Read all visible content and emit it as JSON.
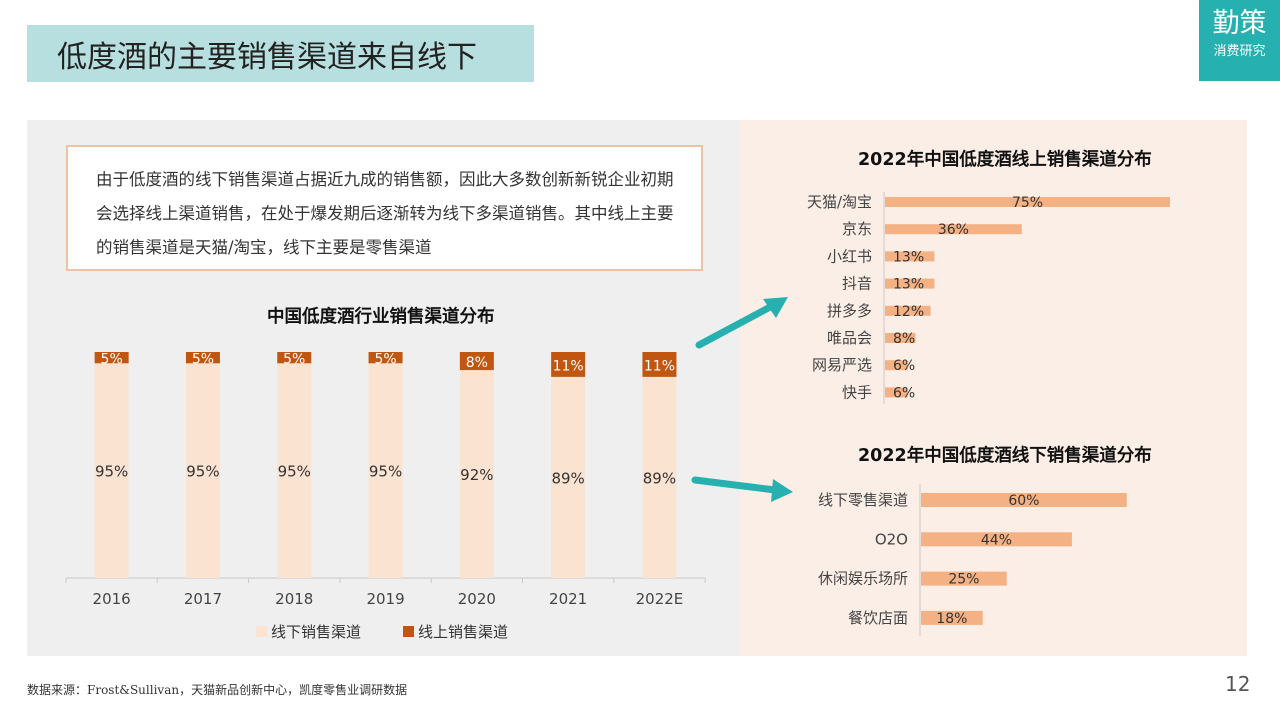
{
  "page": {
    "title": "低度酒的主要销售渠道来自线下",
    "brand_name": "勤策",
    "brand_sub": "消费研究",
    "description": "由于低度酒的线下销售渠道占据近九成的销售额，因此大多数创新新锐企业初期会选择线上渠道销售，在处于爆发期后逐渐转为线下多渠道销售。其中线上主要的销售渠道是天猫/淘宝，线下主要是零售渠道",
    "source": "数据来源：Frost&Sullivan，天猫新品创新中心，凯度零售业调研数据",
    "page_number": "12"
  },
  "colors": {
    "offline_bar": "#fbe3d2",
    "online_bar": "#c0560f",
    "hbar": "#f4b183",
    "accent": "#27b0b0",
    "title_bg": "#b8dfdf"
  },
  "chart_data": [
    {
      "type": "bar",
      "stacked": true,
      "title": "中国低度酒行业销售渠道分布",
      "categories": [
        "2016",
        "2017",
        "2018",
        "2019",
        "2020",
        "2021",
        "2022E"
      ],
      "series": [
        {
          "name": "线下销售渠道",
          "values": [
            95,
            95,
            95,
            95,
            92,
            89,
            89
          ],
          "labels": [
            "95%",
            "95%",
            "95%",
            "95%",
            "92%",
            "89%",
            "89%"
          ]
        },
        {
          "name": "线上销售渠道",
          "values": [
            5,
            5,
            5,
            5,
            8,
            11,
            11
          ],
          "labels": [
            "5%",
            "5%",
            "5%",
            "5%",
            "8%",
            "11%",
            "11%"
          ]
        }
      ],
      "ylim": [
        0,
        100
      ],
      "legend_position": "bottom"
    },
    {
      "type": "bar",
      "orientation": "horizontal",
      "title": "2022年中国低度酒线上销售渠道分布",
      "categories": [
        "天猫/淘宝",
        "京东",
        "小红书",
        "抖音",
        "拼多多",
        "唯品会",
        "网易严选",
        "快手"
      ],
      "values": [
        75,
        36,
        13,
        13,
        12,
        8,
        6,
        6
      ],
      "labels": [
        "75%",
        "36%",
        "13%",
        "13%",
        "12%",
        "8%",
        "6%",
        "6%"
      ]
    },
    {
      "type": "bar",
      "orientation": "horizontal",
      "title": "2022年中国低度酒线下销售渠道分布",
      "categories": [
        "线下零售渠道",
        "O2O",
        "休闲娱乐场所",
        "餐饮店面"
      ],
      "values": [
        60,
        44,
        25,
        18
      ],
      "labels": [
        "60%",
        "44%",
        "25%",
        "18%"
      ]
    }
  ]
}
